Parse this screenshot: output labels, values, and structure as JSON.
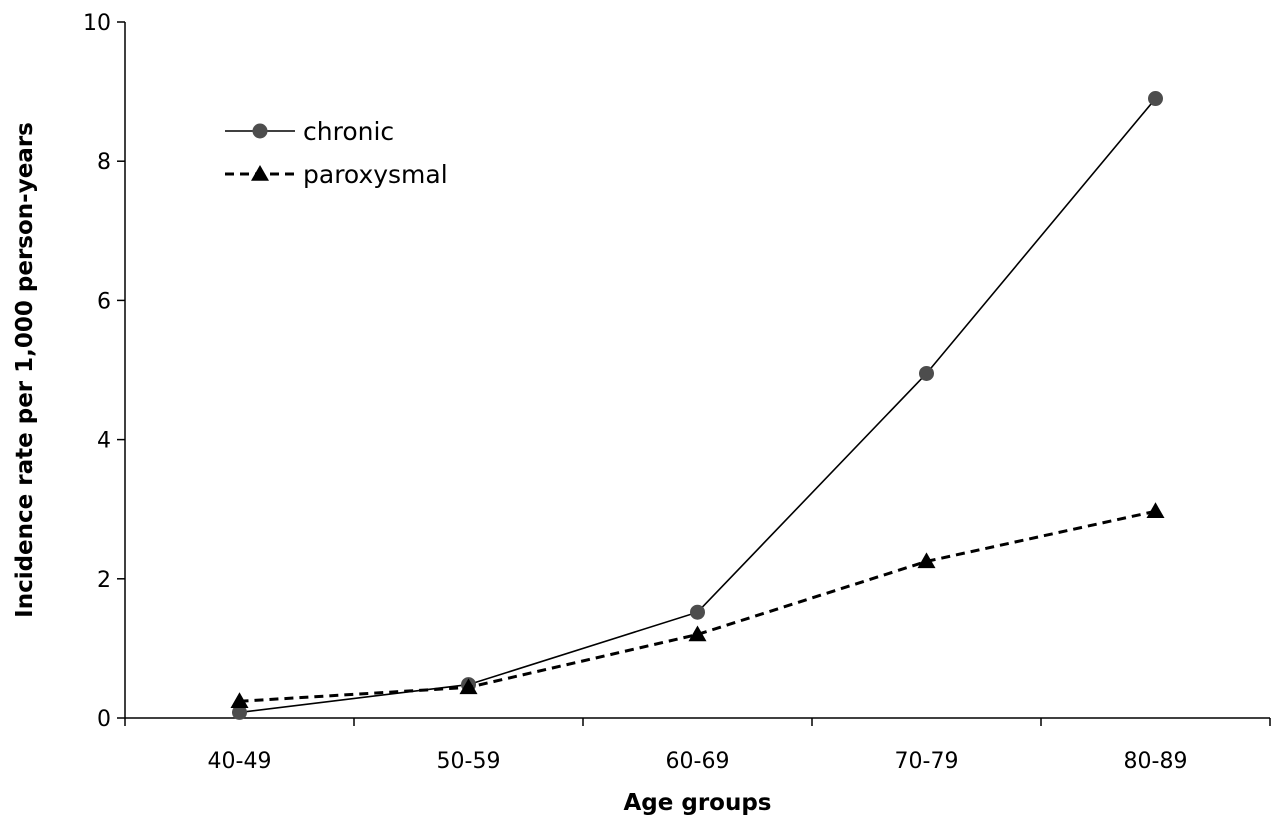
{
  "chart_data": {
    "type": "line",
    "title": "",
    "xlabel": "Age groups",
    "ylabel": "Incidence rate per 1,000 person-years",
    "categories": [
      "40-49",
      "50-59",
      "60-69",
      "70-79",
      "80-89"
    ],
    "ylim": [
      0,
      10
    ],
    "yticks": [
      "0",
      "2",
      "4",
      "6",
      "8",
      "10"
    ],
    "grid": false,
    "legend_position": "top-left",
    "series": [
      {
        "name": "chronic",
        "values": [
          0.08,
          0.48,
          1.52,
          4.95,
          8.9
        ],
        "marker": "circle",
        "line_style": "solid",
        "color": "#4d4d4d"
      },
      {
        "name": "paroxysmal",
        "values": [
          0.24,
          0.44,
          1.2,
          2.25,
          2.97
        ],
        "marker": "triangle",
        "line_style": "dashed",
        "color": "#000000"
      }
    ]
  }
}
